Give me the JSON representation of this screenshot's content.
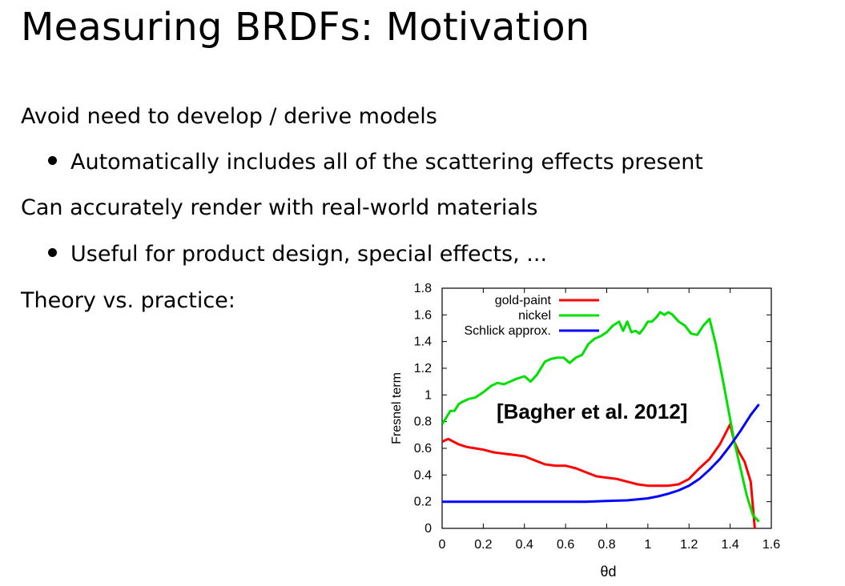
{
  "slide": {
    "title": "Measuring BRDFs: Motivation",
    "lines": [
      {
        "text": "Avoid need to develop / derive models"
      },
      {
        "text": "Automatically includes all of the scattering effects present"
      },
      {
        "text": "Can accurately render with real-world materials"
      },
      {
        "text": "Useful for product design, special effects, ..."
      },
      {
        "text": "Theory vs. practice:"
      }
    ]
  },
  "chart_data": {
    "type": "line",
    "title": "",
    "xlabel": "θd",
    "ylabel": "Fresnel term",
    "xlim": [
      0,
      1.6
    ],
    "ylim": [
      0,
      1.8
    ],
    "xticks": [
      "0",
      "0.2",
      "0.4",
      "0.6",
      "0.8",
      "1",
      "1.2",
      "1.4",
      "1.6"
    ],
    "yticks": [
      "0",
      "0.2",
      "0.4",
      "0.6",
      "0.8",
      "1",
      "1.2",
      "1.4",
      "1.6",
      "1.8"
    ],
    "annotation": "[Bagher et al. 2012]",
    "legend_position": "top-left",
    "series": [
      {
        "name": "gold-paint",
        "color": "#ff0000",
        "x": [
          0,
          0.03,
          0.08,
          0.12,
          0.16,
          0.2,
          0.25,
          0.3,
          0.35,
          0.4,
          0.45,
          0.5,
          0.55,
          0.6,
          0.65,
          0.7,
          0.75,
          0.8,
          0.85,
          0.9,
          0.95,
          1.0,
          1.05,
          1.1,
          1.15,
          1.2,
          1.25,
          1.3,
          1.35,
          1.38,
          1.4,
          1.42,
          1.44,
          1.47,
          1.5,
          1.52
        ],
        "values": [
          0.65,
          0.67,
          0.63,
          0.61,
          0.6,
          0.59,
          0.57,
          0.56,
          0.55,
          0.54,
          0.51,
          0.48,
          0.47,
          0.47,
          0.45,
          0.42,
          0.39,
          0.38,
          0.37,
          0.35,
          0.33,
          0.32,
          0.32,
          0.32,
          0.33,
          0.37,
          0.45,
          0.52,
          0.63,
          0.72,
          0.78,
          0.65,
          0.58,
          0.5,
          0.35,
          0.0
        ]
      },
      {
        "name": "nickel",
        "color": "#00e000",
        "x": [
          0,
          0.02,
          0.04,
          0.06,
          0.08,
          0.1,
          0.13,
          0.16,
          0.2,
          0.24,
          0.27,
          0.3,
          0.33,
          0.36,
          0.4,
          0.43,
          0.46,
          0.5,
          0.53,
          0.56,
          0.59,
          0.62,
          0.65,
          0.68,
          0.71,
          0.74,
          0.77,
          0.8,
          0.83,
          0.86,
          0.88,
          0.9,
          0.92,
          0.94,
          0.96,
          0.98,
          1.0,
          1.02,
          1.04,
          1.06,
          1.08,
          1.1,
          1.12,
          1.15,
          1.18,
          1.21,
          1.24,
          1.27,
          1.3,
          1.33,
          1.36,
          1.39,
          1.42,
          1.45,
          1.48,
          1.51,
          1.54
        ],
        "values": [
          0.78,
          0.83,
          0.88,
          0.88,
          0.93,
          0.95,
          0.97,
          0.98,
          1.02,
          1.07,
          1.09,
          1.08,
          1.1,
          1.12,
          1.14,
          1.1,
          1.15,
          1.25,
          1.27,
          1.28,
          1.28,
          1.24,
          1.28,
          1.3,
          1.38,
          1.42,
          1.44,
          1.47,
          1.52,
          1.55,
          1.48,
          1.55,
          1.47,
          1.48,
          1.46,
          1.5,
          1.55,
          1.55,
          1.58,
          1.62,
          1.6,
          1.62,
          1.6,
          1.55,
          1.52,
          1.46,
          1.45,
          1.52,
          1.57,
          1.38,
          1.15,
          0.9,
          0.65,
          0.45,
          0.25,
          0.1,
          0.05
        ]
      },
      {
        "name": "Schlick approx.",
        "color": "#0000ff",
        "x": [
          0,
          0.1,
          0.2,
          0.3,
          0.4,
          0.5,
          0.6,
          0.7,
          0.8,
          0.9,
          1.0,
          1.05,
          1.1,
          1.15,
          1.2,
          1.25,
          1.3,
          1.35,
          1.4,
          1.45,
          1.5,
          1.54
        ],
        "values": [
          0.2,
          0.2,
          0.2,
          0.2,
          0.2,
          0.2,
          0.2,
          0.2,
          0.205,
          0.21,
          0.225,
          0.24,
          0.26,
          0.285,
          0.32,
          0.37,
          0.44,
          0.52,
          0.62,
          0.73,
          0.85,
          0.93
        ]
      }
    ]
  }
}
